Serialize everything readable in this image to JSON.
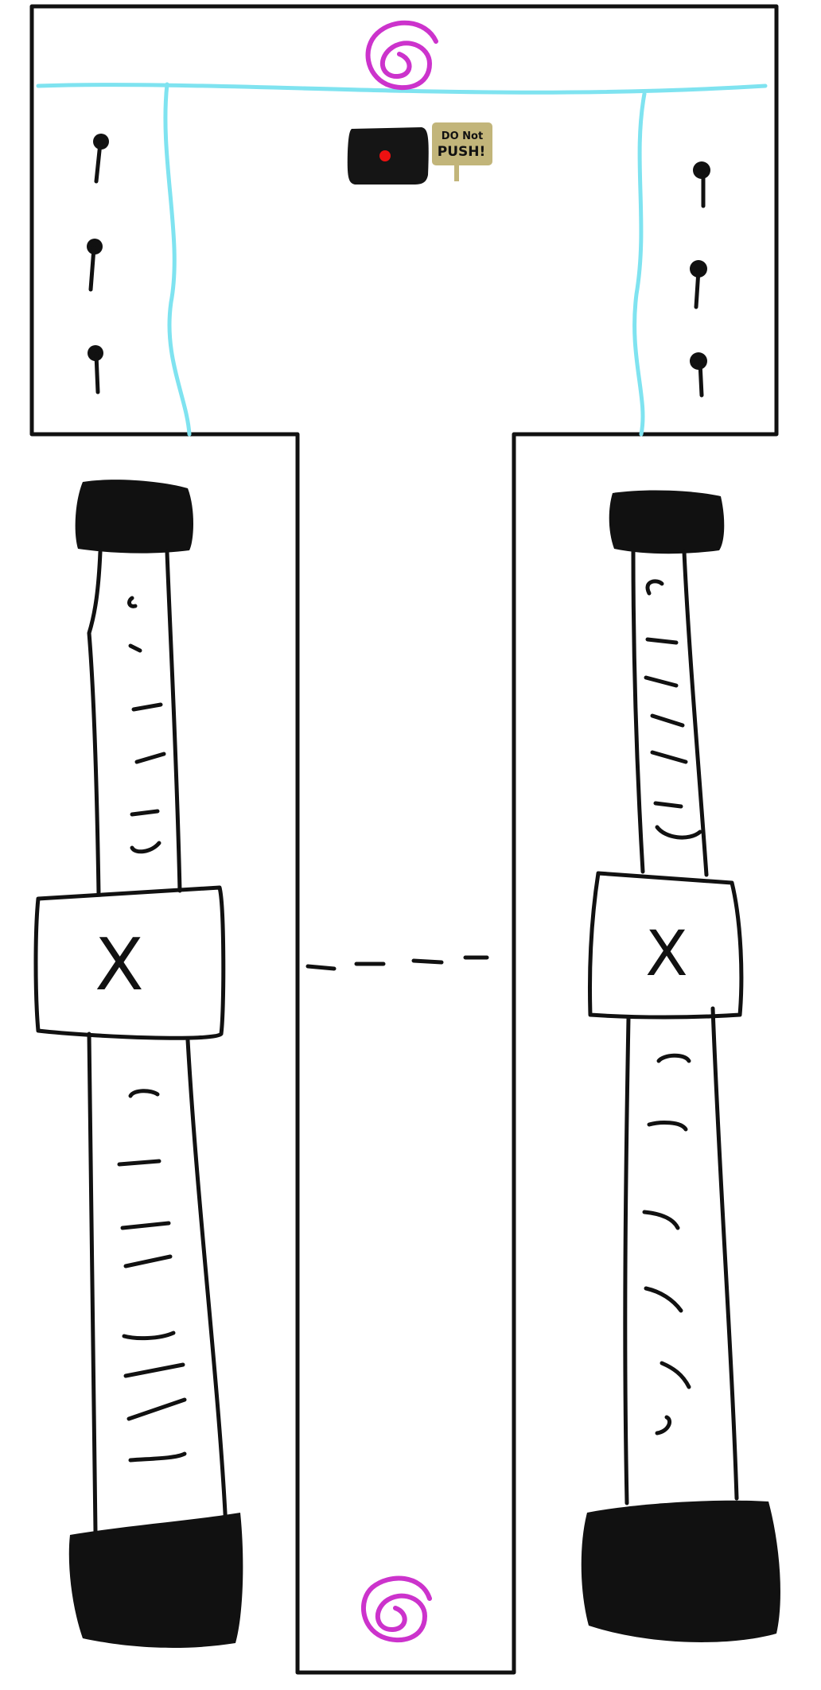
{
  "level": {
    "colors": {
      "ink": "#111111",
      "background": "#ffffff",
      "water_line": "#7fe3f0",
      "portal": "#cc33cc",
      "button_body": "#151515",
      "button_light": "#ee1111",
      "sign_board": "#c2b57a"
    },
    "sign": {
      "line1": "DO Not",
      "line2": "PUSH!"
    },
    "icons": {
      "portal_top": "spiral-portal-icon",
      "portal_bottom": "spiral-portal-icon",
      "button": "red-button-icon",
      "sign": "warning-sign-icon",
      "trap_marker": "x-mark-icon",
      "pins": "pin-icon"
    },
    "ladders": {
      "left_marker": "X",
      "right_marker": "X"
    }
  }
}
